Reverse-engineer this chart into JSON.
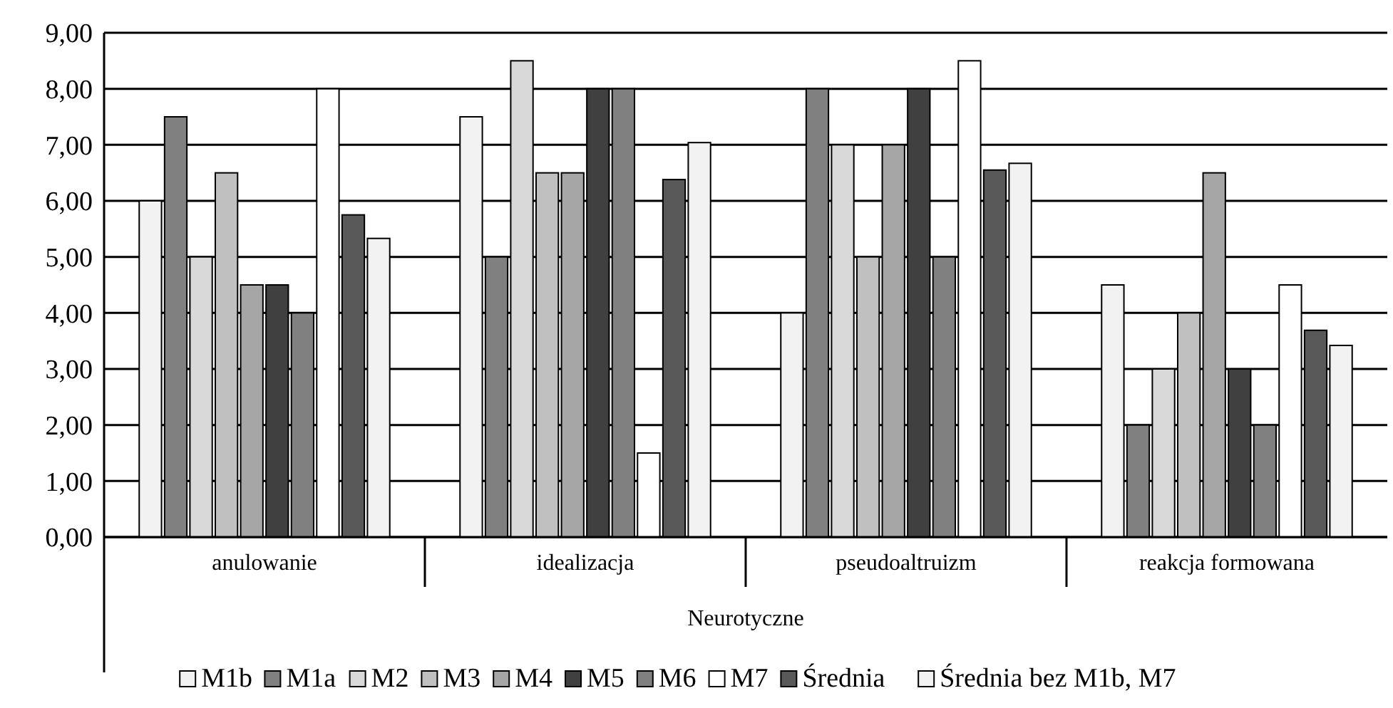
{
  "chart_data": {
    "type": "bar",
    "categories": [
      "anulowanie",
      "idealizacja",
      "pseudoaltruizm",
      "reakcja formowana"
    ],
    "xlabel": "Neurotyczne",
    "series": [
      {
        "name": "M1b",
        "color": "#f2f2f2",
        "values": [
          6,
          7.5,
          4,
          4.5
        ]
      },
      {
        "name": "M1a",
        "color": "#808080",
        "values": [
          7.5,
          5,
          8,
          2
        ]
      },
      {
        "name": "M2",
        "color": "#d9d9d9",
        "values": [
          5,
          8.5,
          7,
          3
        ]
      },
      {
        "name": "M3",
        "color": "#c0c0c0",
        "values": [
          6.5,
          6.5,
          5,
          4
        ]
      },
      {
        "name": "M4",
        "color": "#a6a6a6",
        "values": [
          4.5,
          6.5,
          7,
          6.5
        ]
      },
      {
        "name": "M5",
        "color": "#404040",
        "values": [
          4.5,
          8,
          8,
          3
        ]
      },
      {
        "name": "M6",
        "color": "#808080",
        "values": [
          4,
          8,
          5,
          2
        ]
      },
      {
        "name": "M7",
        "color": "#ffffff",
        "values": [
          8,
          1.5,
          8.5,
          4.5
        ]
      },
      {
        "name": "Średnia",
        "color": "#595959",
        "values": [
          5.75,
          6.38,
          6.55,
          3.69
        ]
      },
      {
        "name": "Średnia bez M1b, M7",
        "color": "#f2f2f2",
        "values": [
          5.33,
          7.04,
          6.67,
          3.42
        ]
      }
    ],
    "ylim": [
      0,
      9
    ],
    "yticks": [
      {
        "value": 0,
        "label": "0,00"
      },
      {
        "value": 1,
        "label": "1,00"
      },
      {
        "value": 2,
        "label": "2,00"
      },
      {
        "value": 3,
        "label": "3,00"
      },
      {
        "value": 4,
        "label": "4,00"
      },
      {
        "value": 5,
        "label": "5,00"
      },
      {
        "value": 6,
        "label": "6,00"
      },
      {
        "value": 7,
        "label": "7,00"
      },
      {
        "value": 8,
        "label": "8,00"
      },
      {
        "value": 9,
        "label": "9,00"
      }
    ],
    "grid": "y",
    "legend": "bottom"
  }
}
